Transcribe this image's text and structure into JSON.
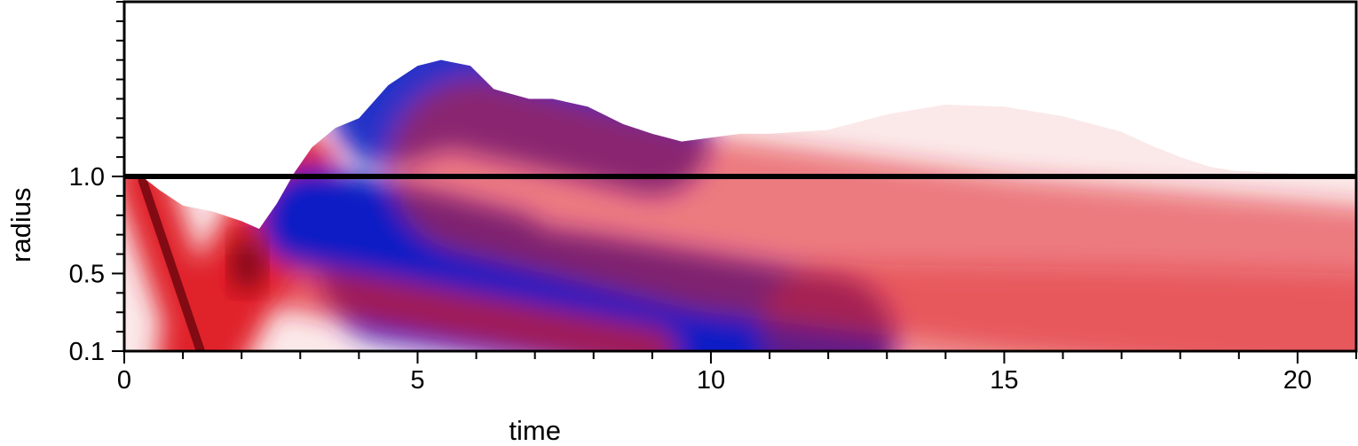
{
  "chart_data": {
    "type": "heatmap",
    "title": "",
    "xlabel": "time",
    "ylabel": "radius",
    "xlim": [
      0,
      21
    ],
    "ylim": [
      0.1,
      1.9
    ],
    "x_ticks": [
      {
        "value": 0,
        "label": "0"
      },
      {
        "value": 5,
        "label": "5"
      },
      {
        "value": 10,
        "label": "10"
      },
      {
        "value": 15,
        "label": "15"
      },
      {
        "value": 20,
        "label": "20"
      }
    ],
    "x_minor_step": 1,
    "y_ticks": [
      {
        "value": 0.1,
        "label": "0.1"
      },
      {
        "value": 0.5,
        "label": "0.5"
      },
      {
        "value": 1.0,
        "label": "1.0"
      }
    ],
    "y_minor_step": 0.1,
    "colormap": {
      "negative": "#0a1fc4",
      "zero": "#ffffff",
      "positive": "#e0202a",
      "extreme_positive": "#5a0008"
    },
    "reference_line": {
      "y": 1.0,
      "color": "#000000"
    },
    "outer_boundary": {
      "t": [
        0.3,
        0.6,
        1.0,
        1.5,
        2.0,
        2.3,
        2.6,
        2.9,
        3.2,
        3.6,
        4.0,
        4.5,
        5.0,
        5.4,
        5.9,
        6.3,
        6.9,
        7.3,
        7.9,
        8.5,
        9.0,
        9.5,
        10.0,
        10.5,
        11.0,
        12.0,
        13.0,
        14.0,
        15.0,
        16.0,
        17.0,
        17.5,
        18.0,
        18.5,
        18.9
      ],
      "r": [
        1.0,
        0.93,
        0.85,
        0.82,
        0.77,
        0.73,
        0.86,
        1.02,
        1.15,
        1.25,
        1.3,
        1.47,
        1.57,
        1.6,
        1.57,
        1.45,
        1.4,
        1.4,
        1.36,
        1.27,
        1.22,
        1.18,
        1.2,
        1.22,
        1.22,
        1.24,
        1.32,
        1.37,
        1.36,
        1.31,
        1.23,
        1.16,
        1.1,
        1.05,
        1.03
      ]
    },
    "features": [
      {
        "kind": "red",
        "path_t": [
          0.3,
          1.3
        ],
        "path_r": [
          0.99,
          0.1
        ],
        "width": 0.28,
        "amp": 1.2
      },
      {
        "kind": "red",
        "path_t": [
          1.3,
          2.9
        ],
        "path_r": [
          0.1,
          1.0
        ],
        "width": 0.45,
        "amp": 1.1
      },
      {
        "kind": "blue",
        "path_t": [
          3.2,
          5.2,
          6.5
        ],
        "path_r": [
          0.78,
          0.65,
          0.55
        ],
        "width": 0.55,
        "amp": 1.0
      },
      {
        "kind": "blue",
        "path_t": [
          4.5,
          8.0,
          12.0
        ],
        "path_r": [
          0.5,
          0.35,
          0.15
        ],
        "width": 0.7,
        "amp": 1.0
      },
      {
        "kind": "red",
        "path_t": [
          2.0,
          5.0,
          9.0
        ],
        "path_r": [
          0.48,
          0.32,
          0.1
        ],
        "width": 0.25,
        "amp": 0.7
      },
      {
        "kind": "blue",
        "path_t": [
          4.5,
          5.5,
          7.0,
          9.0
        ],
        "path_r": [
          1.35,
          1.45,
          1.35,
          1.2
        ],
        "width": 0.6,
        "amp": 0.9
      },
      {
        "kind": "red",
        "path_t": [
          6.0,
          10.0,
          15.0,
          21.0
        ],
        "path_r": [
          1.05,
          0.75,
          0.55,
          0.4
        ],
        "width": 0.9,
        "amp": 0.55
      },
      {
        "kind": "red",
        "path_t": [
          12.0,
          17.0,
          21.0
        ],
        "path_r": [
          0.2,
          0.18,
          0.15
        ],
        "width": 0.7,
        "amp": 0.4
      }
    ]
  }
}
